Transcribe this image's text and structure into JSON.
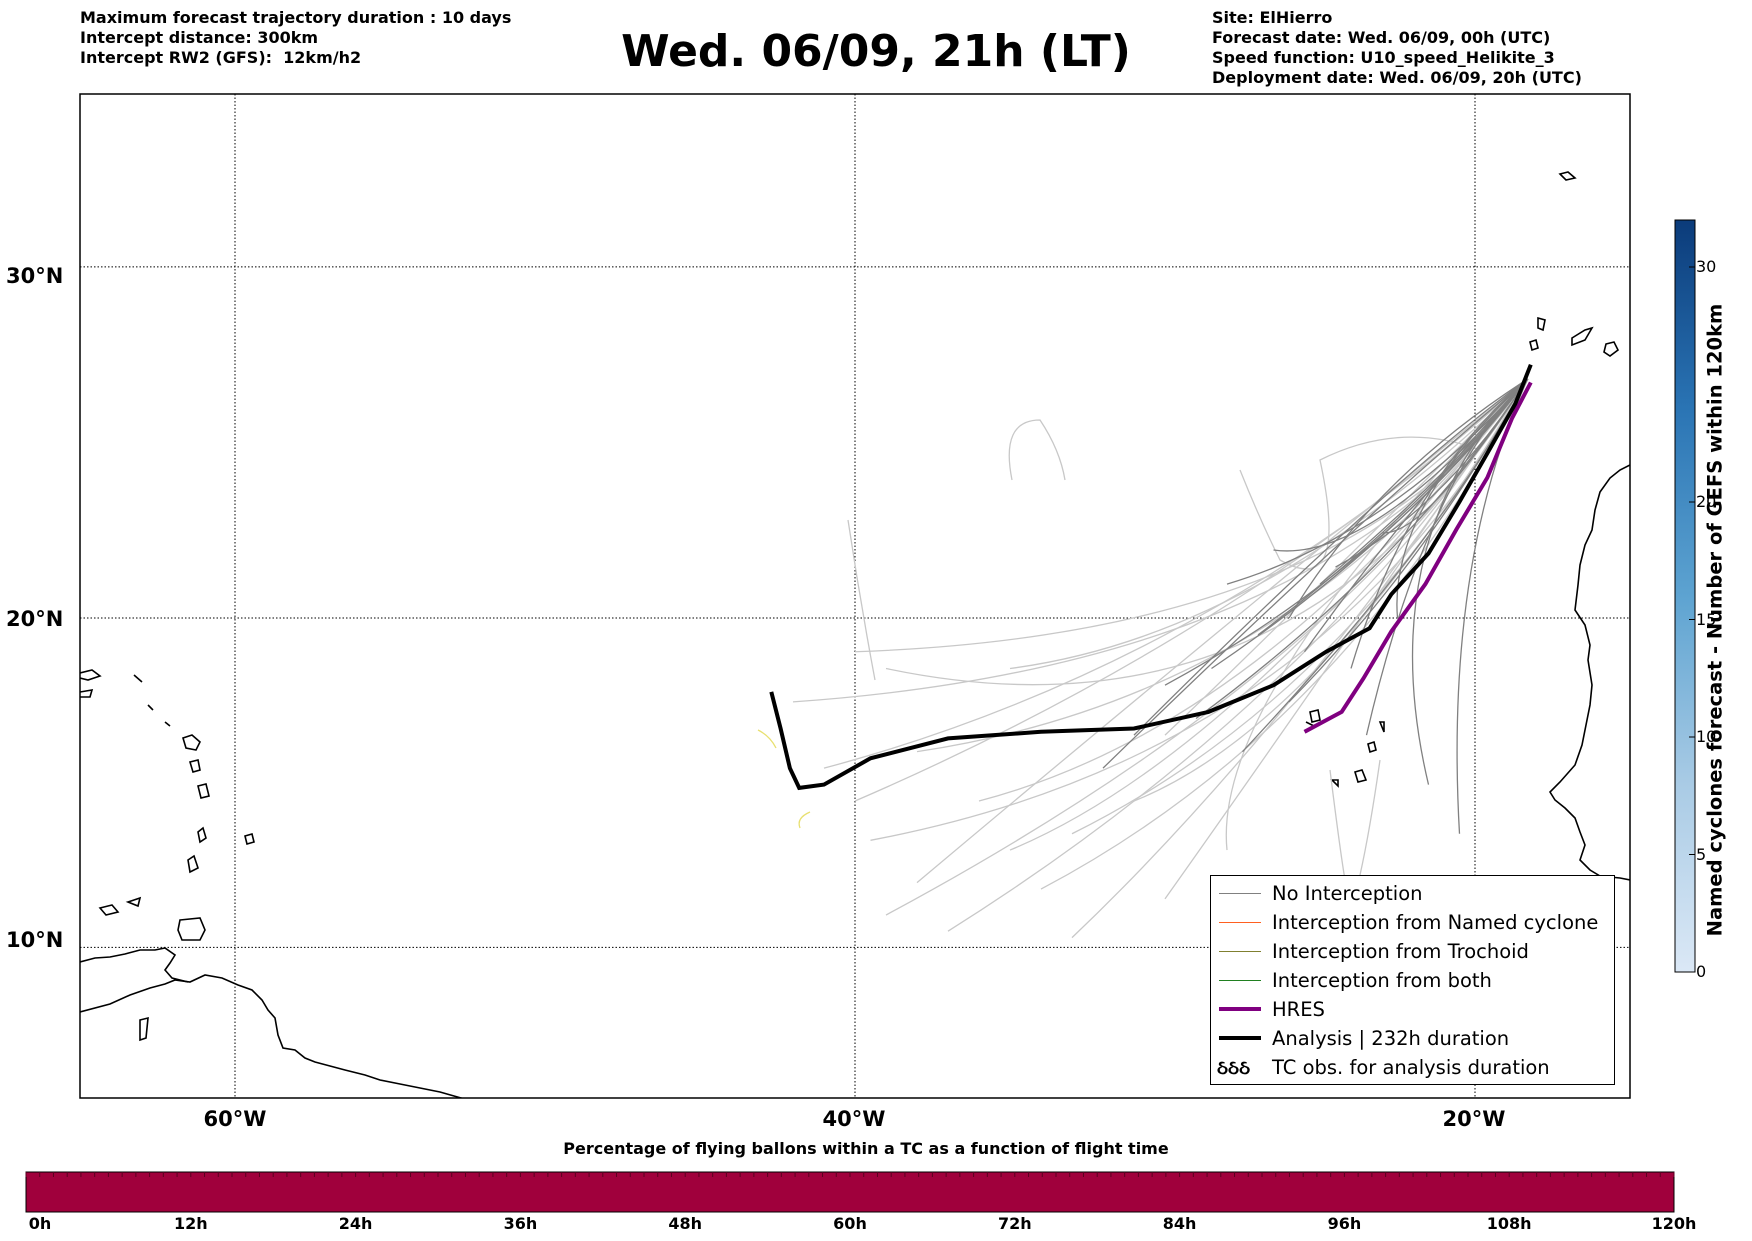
{
  "header": {
    "left": [
      "Maximum forecast trajectory duration : 10 days",
      "Intercept distance: 300km",
      "Intercept RW2 (GFS):  12km/h2"
    ],
    "title": "Wed. 06/09, 21h (LT)",
    "right": [
      "Site: ElHierro",
      "Forecast date: Wed. 06/09, 00h (UTC)",
      "Speed function: U10_speed_Helikite_3",
      "Deployment date: Wed. 06/09, 20h (UTC)"
    ]
  },
  "map": {
    "lat_labels": [
      "30°N",
      "20°N",
      "10°N"
    ],
    "lon_labels": [
      "60°W",
      "40°W",
      "20°W"
    ],
    "lat_values": [
      30,
      20,
      10
    ],
    "lon_values": [
      -60,
      -40,
      -20
    ],
    "extent": {
      "lon_min": -65,
      "lon_max": -15,
      "lat_min": 5.3,
      "lat_max": 34.6
    },
    "colors": {
      "no_interception": "#808080",
      "spread": "#c8c8c8",
      "named_cyclone": "#ff6020",
      "trochoid": "#808030",
      "both": "#208020",
      "hres": "#800080",
      "analysis": "#000000",
      "yellow_marks": "#e8e070"
    }
  },
  "legend": {
    "items": [
      {
        "label": "No Interception",
        "color": "#808080",
        "style": "thin"
      },
      {
        "label": "Interception from Named cyclone",
        "color": "#ff6020",
        "style": "thin"
      },
      {
        "label": "Interception from Trochoid",
        "color": "#808030",
        "style": "thin"
      },
      {
        "label": "Interception from both",
        "color": "#208020",
        "style": "thin"
      },
      {
        "label": "HRES",
        "color": "#800080",
        "style": "thick"
      },
      {
        "label": "Analysis | 232h duration",
        "color": "#000000",
        "style": "thick"
      },
      {
        "label": "TC obs. for analysis duration",
        "color": "#000000",
        "style": "symbol",
        "symbol": "ઠઠઠ"
      }
    ]
  },
  "colorbar_vertical": {
    "title": "Named cyclones forecast - Number of GEFS within 120km",
    "ticks": [
      "0",
      "5",
      "10",
      "15",
      "20",
      "30"
    ],
    "tick_values": [
      0,
      5,
      10,
      15,
      20,
      30
    ],
    "range": [
      0,
      32
    ]
  },
  "colorbar_horizontal": {
    "title": "Percentage of flying ballons within a TC as a function of flight time",
    "ticks": [
      "0h",
      "12h",
      "24h",
      "36h",
      "48h",
      "60h",
      "72h",
      "84h",
      "96h",
      "108h",
      "120h"
    ],
    "color": "#a0003c"
  },
  "chart_data": {
    "type": "line",
    "xlabel": "",
    "ylabel": "",
    "series": [
      {
        "name": "Analysis | 232h duration",
        "points": [
          [
            -18.2,
            27.3
          ],
          [
            -18.7,
            26.2
          ],
          [
            -19.6,
            24.8
          ],
          [
            -20.5,
            23.4
          ],
          [
            -21.5,
            21.9
          ],
          [
            -22.7,
            20.7
          ],
          [
            -23.4,
            19.7
          ],
          [
            -24.8,
            19.0
          ],
          [
            -26.5,
            18.0
          ],
          [
            -28.6,
            17.2
          ],
          [
            -31.0,
            16.7
          ],
          [
            -34.0,
            16.6
          ],
          [
            -37.0,
            16.4
          ],
          [
            -39.5,
            15.8
          ],
          [
            -41.0,
            15.0
          ],
          [
            -41.8,
            14.9
          ],
          [
            -42.1,
            15.5
          ],
          [
            -42.4,
            16.7
          ],
          [
            -42.7,
            17.8
          ]
        ]
      },
      {
        "name": "HRES",
        "points": [
          [
            -18.2,
            26.8
          ],
          [
            -18.8,
            25.8
          ],
          [
            -19.6,
            24.1
          ],
          [
            -20.6,
            22.6
          ],
          [
            -21.6,
            21.0
          ],
          [
            -22.7,
            19.6
          ],
          [
            -23.6,
            18.2
          ],
          [
            -24.3,
            17.2
          ],
          [
            -25.5,
            16.6
          ]
        ]
      }
    ]
  }
}
